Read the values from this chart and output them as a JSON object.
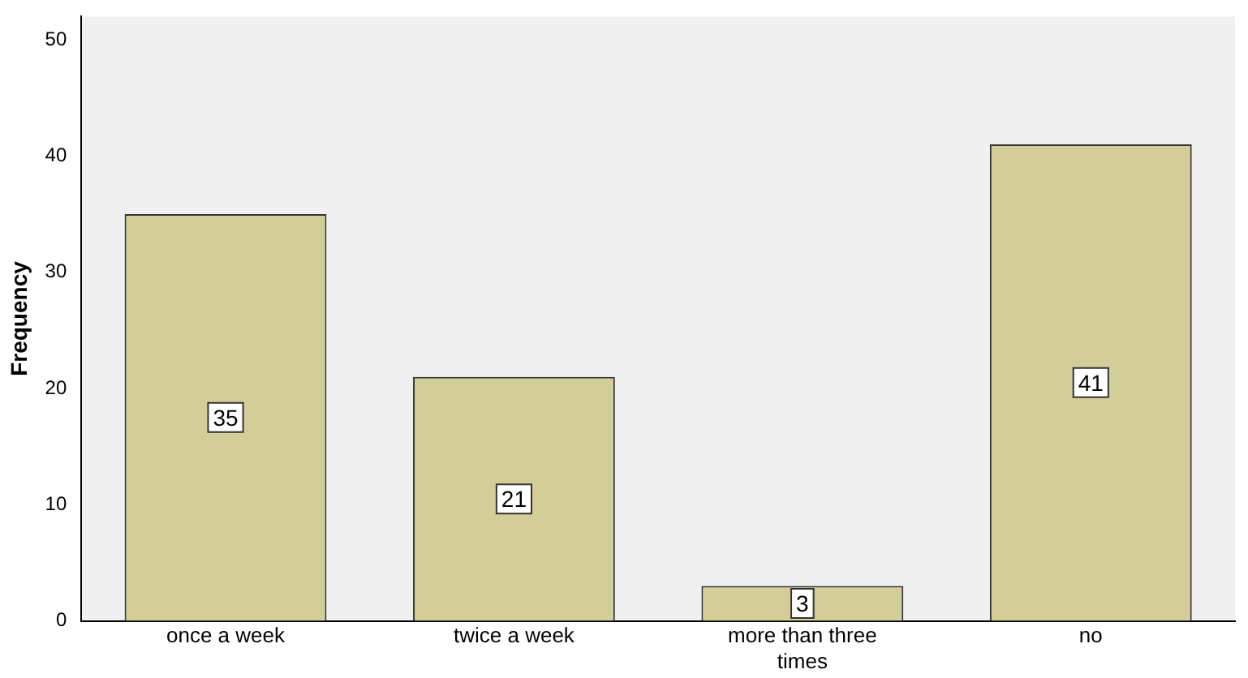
{
  "chart_data": {
    "type": "bar",
    "ylabel": "Frequency",
    "categories": [
      "once a week",
      "twice a week",
      "more than three times",
      "no"
    ],
    "values": [
      35,
      21,
      3,
      41
    ],
    "color": "#d3ce98",
    "ylim": [
      0,
      52
    ],
    "yticks": [
      0,
      10,
      20,
      30,
      40,
      50
    ],
    "grid": false,
    "legend": false,
    "data_labels": true
  }
}
